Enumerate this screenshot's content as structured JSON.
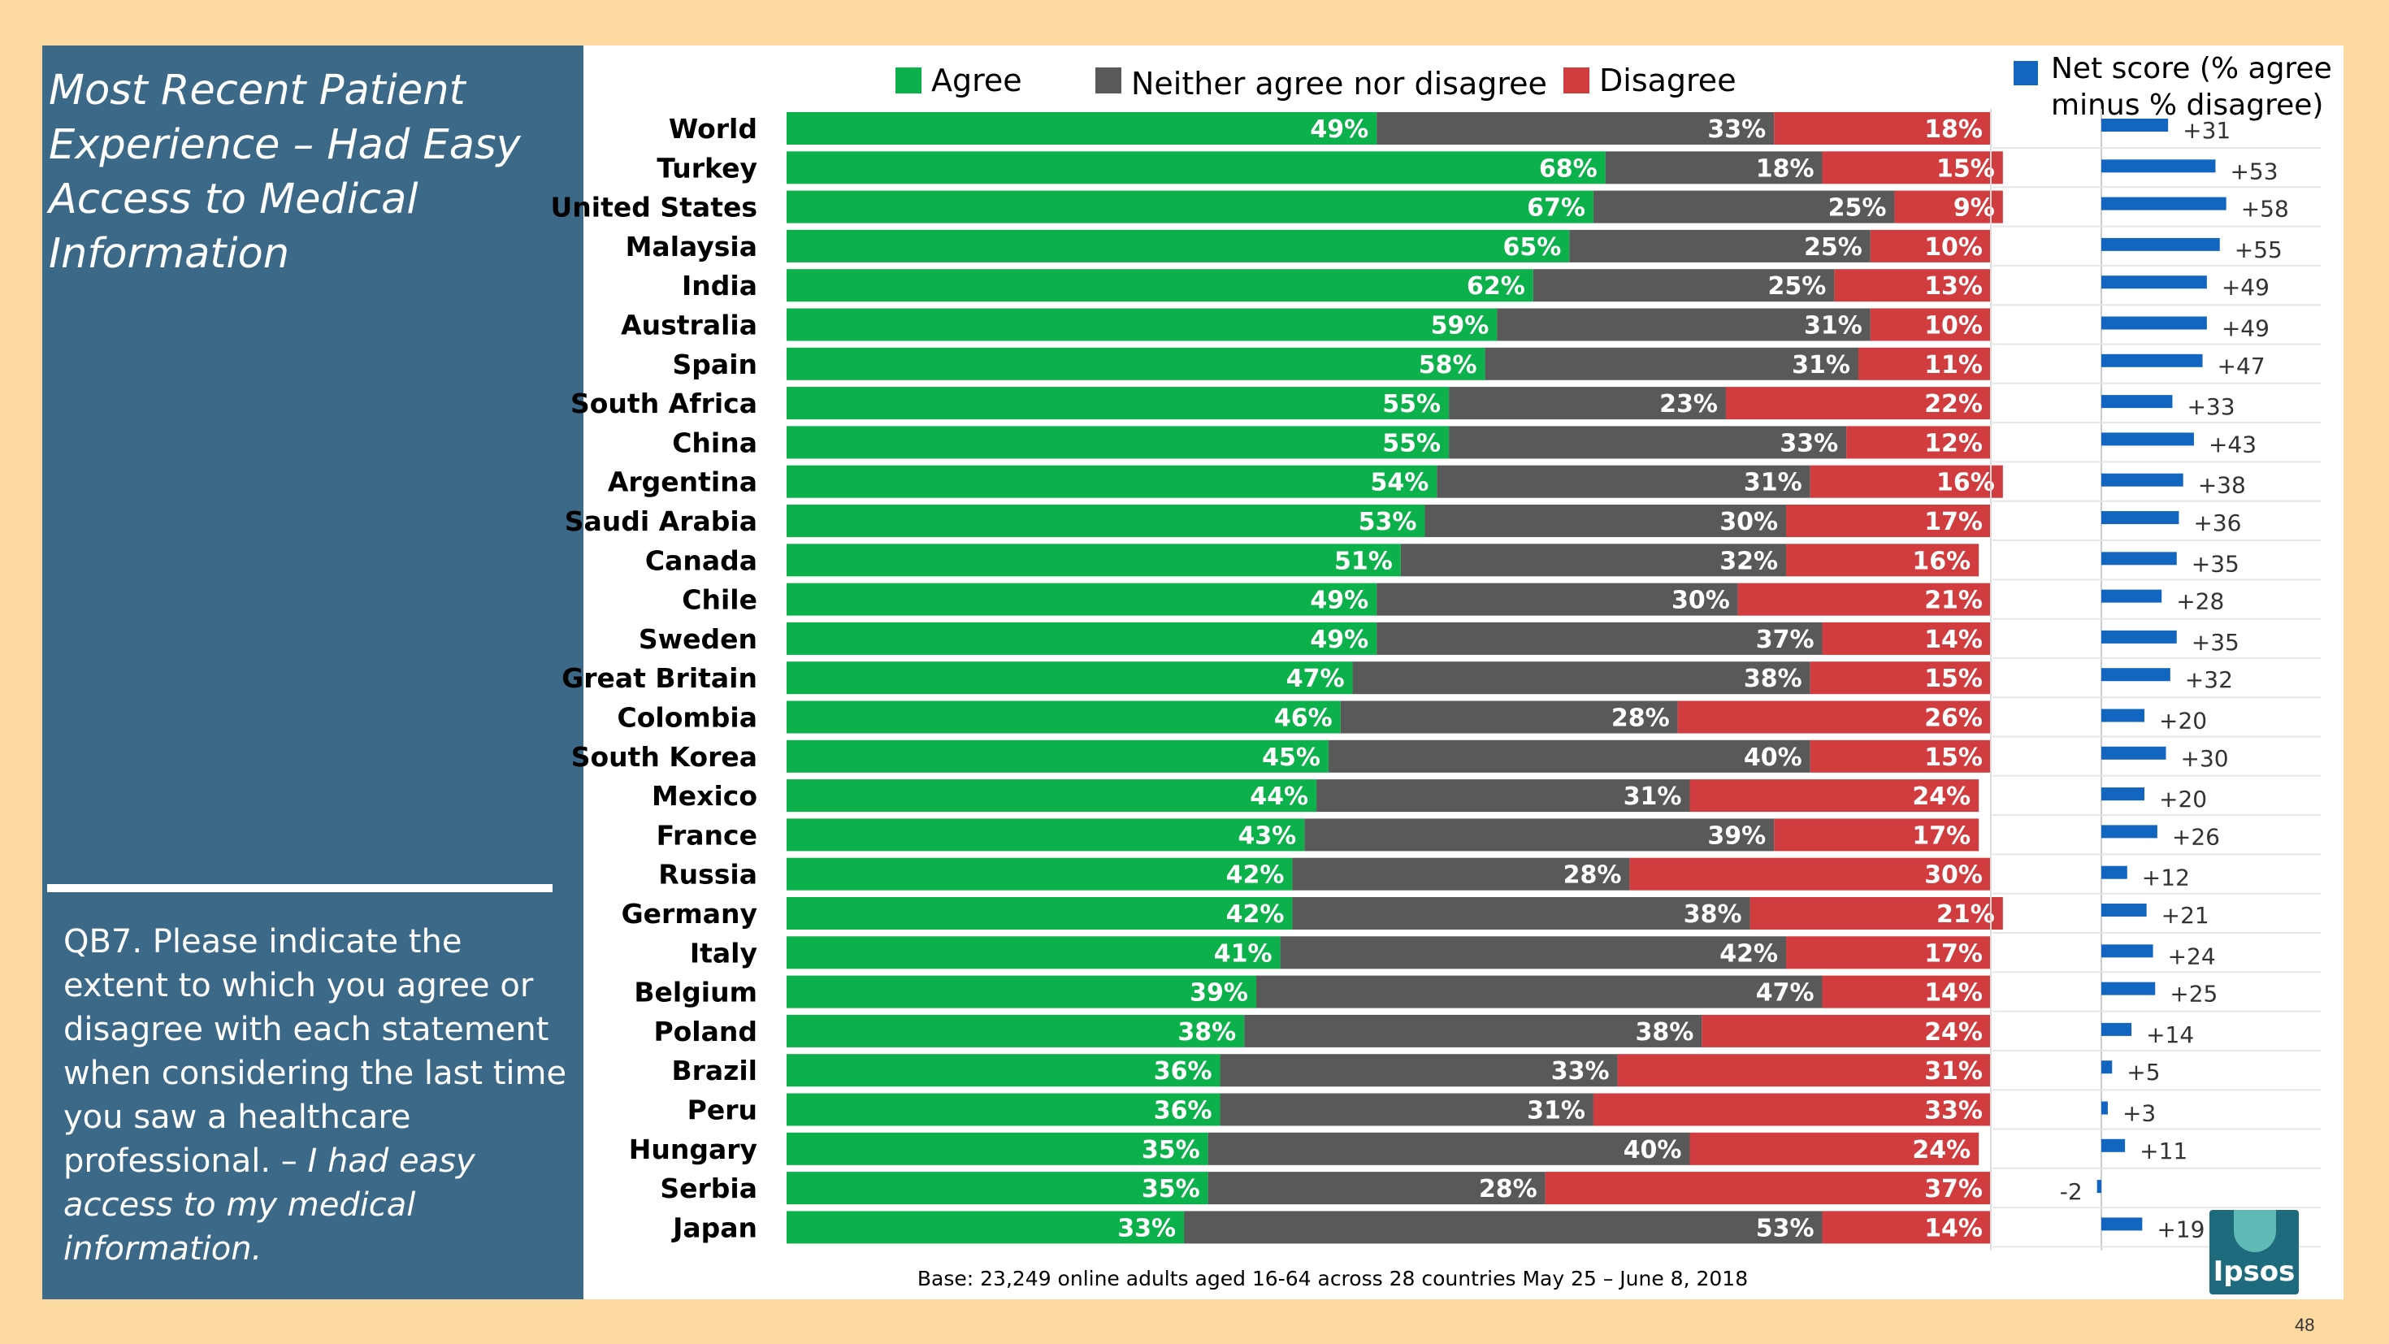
{
  "panel": {
    "title": "Most Recent Patient Experience – Had Easy Access to Medical Information",
    "question": "QB7. Please indicate the extent to which you agree or disagree with each statement when considering the last time you saw a healthcare professional. –",
    "question_italic": "I had easy access to my medical information."
  },
  "footnote": "Base: 23,249 online adults aged 16-64 across 28 countries  May 25 – June 8, 2018",
  "logo_text": "Ipsos",
  "page_number": "48",
  "colors": {
    "agree": "#0db14b",
    "neither": "#595959",
    "disagree": "#d13c3e",
    "net": "#1366c0"
  },
  "chart_data": {
    "type": "bar",
    "orientation": "horizontal-stacked-100",
    "categories": [
      "World",
      "Turkey",
      "United States",
      "Malaysia",
      "India",
      "Australia",
      "Spain",
      "South Africa",
      "China",
      "Argentina",
      "Saudi Arabia",
      "Canada",
      "Chile",
      "Sweden",
      "Great Britain",
      "Colombia",
      "South Korea",
      "Mexico",
      "France",
      "Russia",
      "Germany",
      "Italy",
      "Belgium",
      "Poland",
      "Brazil",
      "Peru",
      "Hungary",
      "Serbia",
      "Japan"
    ],
    "series": [
      {
        "name": "Agree",
        "color": "#0db14b",
        "values": [
          49,
          68,
          67,
          65,
          62,
          59,
          58,
          55,
          55,
          54,
          53,
          51,
          49,
          49,
          47,
          46,
          45,
          44,
          43,
          42,
          42,
          41,
          39,
          38,
          36,
          36,
          35,
          35,
          33
        ]
      },
      {
        "name": "Neither agree nor disagree",
        "color": "#595959",
        "values": [
          33,
          18,
          25,
          25,
          25,
          31,
          31,
          23,
          33,
          31,
          30,
          32,
          30,
          37,
          38,
          28,
          40,
          31,
          39,
          28,
          38,
          42,
          47,
          38,
          33,
          31,
          40,
          28,
          53
        ]
      },
      {
        "name": "Disagree",
        "color": "#d13c3e",
        "values": [
          18,
          15,
          9,
          10,
          13,
          10,
          11,
          22,
          12,
          16,
          17,
          16,
          21,
          14,
          15,
          26,
          15,
          24,
          17,
          30,
          21,
          17,
          14,
          24,
          31,
          33,
          24,
          37,
          14
        ]
      }
    ],
    "net_score": {
      "name": "Net score (% agree minus % disagree)",
      "color": "#1366c0",
      "values": [
        31,
        53,
        58,
        55,
        49,
        49,
        47,
        33,
        43,
        38,
        36,
        35,
        28,
        35,
        32,
        20,
        30,
        20,
        26,
        12,
        21,
        24,
        25,
        14,
        5,
        3,
        11,
        -2,
        19
      ],
      "labels": [
        "+31",
        "+53",
        "+58",
        "+55",
        "+49",
        "+49",
        "+47",
        "+33",
        "+43",
        "+38",
        "+36",
        "+35",
        "+28",
        "+35",
        "+32",
        "+20",
        "+30",
        "+20",
        "+26",
        "+12",
        "+21",
        "+24",
        "+25",
        "+14",
        "+5",
        "+3",
        "+11",
        "-2",
        "+19"
      ]
    },
    "legend_position": "top"
  }
}
